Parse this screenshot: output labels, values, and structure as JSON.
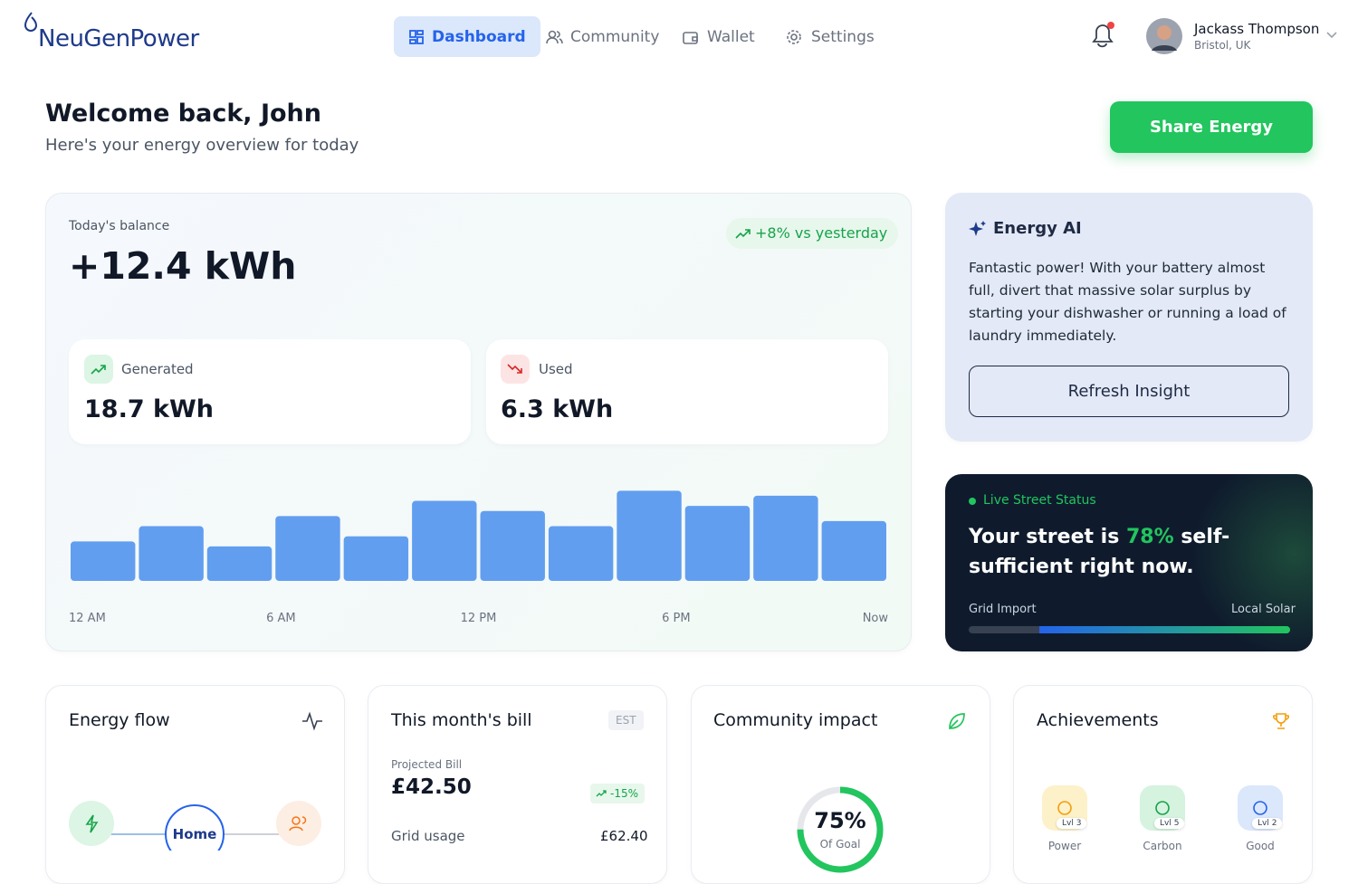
{
  "header": {
    "logo": "NeuGenPower",
    "nav": [
      "Dashboard",
      "Community",
      "Wallet",
      "Settings"
    ],
    "user": {
      "name": "Jackass Thompson",
      "location": "Bristol, UK"
    }
  },
  "welcome": {
    "title": "Welcome back, John",
    "subtitle": "Here's your energy overview for today",
    "button": "Share Energy"
  },
  "balance": {
    "label": "Today's balance",
    "value": "+12.4 kWh",
    "change": "+8% vs yesterday",
    "generated": {
      "label": "Generated",
      "value": "18.7 kWh"
    },
    "used": {
      "label": "Used",
      "value": "6.3 kWh"
    },
    "bars": [
      39,
      54,
      34,
      64,
      44,
      79,
      69,
      54,
      89,
      74,
      84,
      59
    ],
    "x_labels": [
      "12 AM",
      "6 AM",
      "12 PM",
      "6 PM",
      "Now"
    ]
  },
  "ai": {
    "title": "Energy AI",
    "text": "Fantastic power! With your battery almost full, divert that massive solar surplus by starting your dishwasher or running a load of laundry immediately.",
    "button": "Refresh Insight"
  },
  "street": {
    "label": "Live Street Status",
    "text_before": "Your street is",
    "percent": "78%",
    "text_after": "self-sufficient right now.",
    "left": "Grid Import",
    "right": "Local Solar"
  },
  "cards": {
    "energy_flow": {
      "title": "Energy flow",
      "node": "Home"
    },
    "bill": {
      "title": "This month's bill",
      "badge": "EST",
      "label": "Projected Bill",
      "amount": "£42.50",
      "change": "-15%",
      "row_label": "Grid usage",
      "row_value": "£62.40"
    },
    "impact": {
      "title": "Community impact",
      "percent": "75%",
      "caption": "Of Goal"
    },
    "achievements": {
      "title": "Achievements",
      "items": [
        {
          "level": "Lvl 3",
          "name": "Power"
        },
        {
          "level": "Lvl 5",
          "name": "Carbon"
        },
        {
          "level": "Lvl 2",
          "name": "Good"
        }
      ]
    }
  }
}
